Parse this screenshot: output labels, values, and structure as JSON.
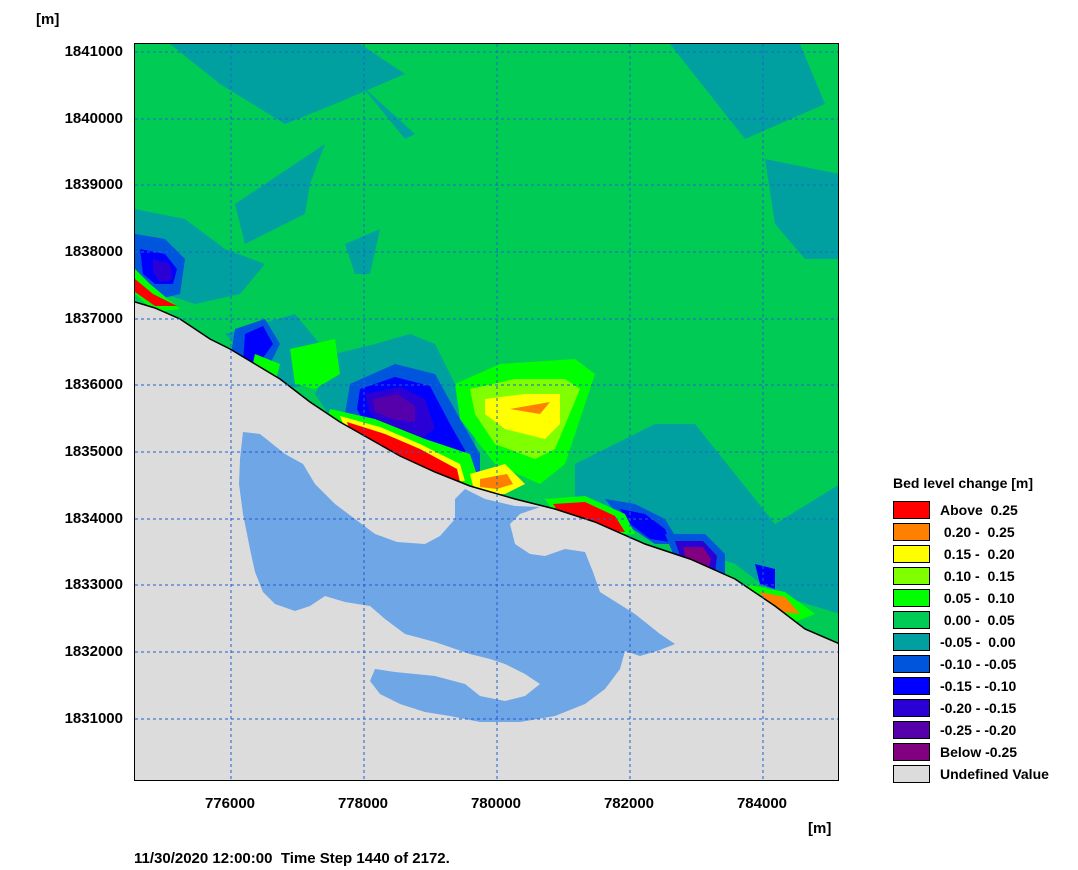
{
  "axes": {
    "y_unit": "[m]",
    "x_unit": "[m]",
    "y_ticks": [
      "1841000",
      "1840000",
      "1839000",
      "1838000",
      "1837000",
      "1836000",
      "1835000",
      "1834000",
      "1833000",
      "1832000",
      "1831000"
    ],
    "x_ticks": [
      "776000",
      "778000",
      "780000",
      "782000",
      "784000"
    ]
  },
  "legend": {
    "title": "Bed level change [m]",
    "items": [
      {
        "label": "Above  0.25",
        "color": "#ff0000"
      },
      {
        "label": " 0.20 -  0.25",
        "color": "#ff7f00"
      },
      {
        "label": " 0.15 -  0.20",
        "color": "#ffff00"
      },
      {
        "label": " 0.10 -  0.15",
        "color": "#80ff00"
      },
      {
        "label": " 0.05 -  0.10",
        "color": "#00ff00"
      },
      {
        "label": " 0.00 -  0.05",
        "color": "#00cc55"
      },
      {
        "label": "-0.05 -  0.00",
        "color": "#00a0a0"
      },
      {
        "label": "-0.10 - -0.05",
        "color": "#0055dd"
      },
      {
        "label": "-0.15 - -0.10",
        "color": "#0000ff"
      },
      {
        "label": "-0.20 - -0.15",
        "color": "#2a00d5"
      },
      {
        "label": "-0.25 - -0.20",
        "color": "#5500aa"
      },
      {
        "label": "Below -0.25",
        "color": "#800080"
      },
      {
        "label": "Undefined Value",
        "color": "#dcdcdc"
      }
    ]
  },
  "footer": {
    "datetime": "11/30/2020 12:00:00",
    "timestep": "Time Step 1440 of 2172."
  },
  "colors": {
    "land_water": "#6ea6e6",
    "grid": "#1f5fd0"
  }
}
